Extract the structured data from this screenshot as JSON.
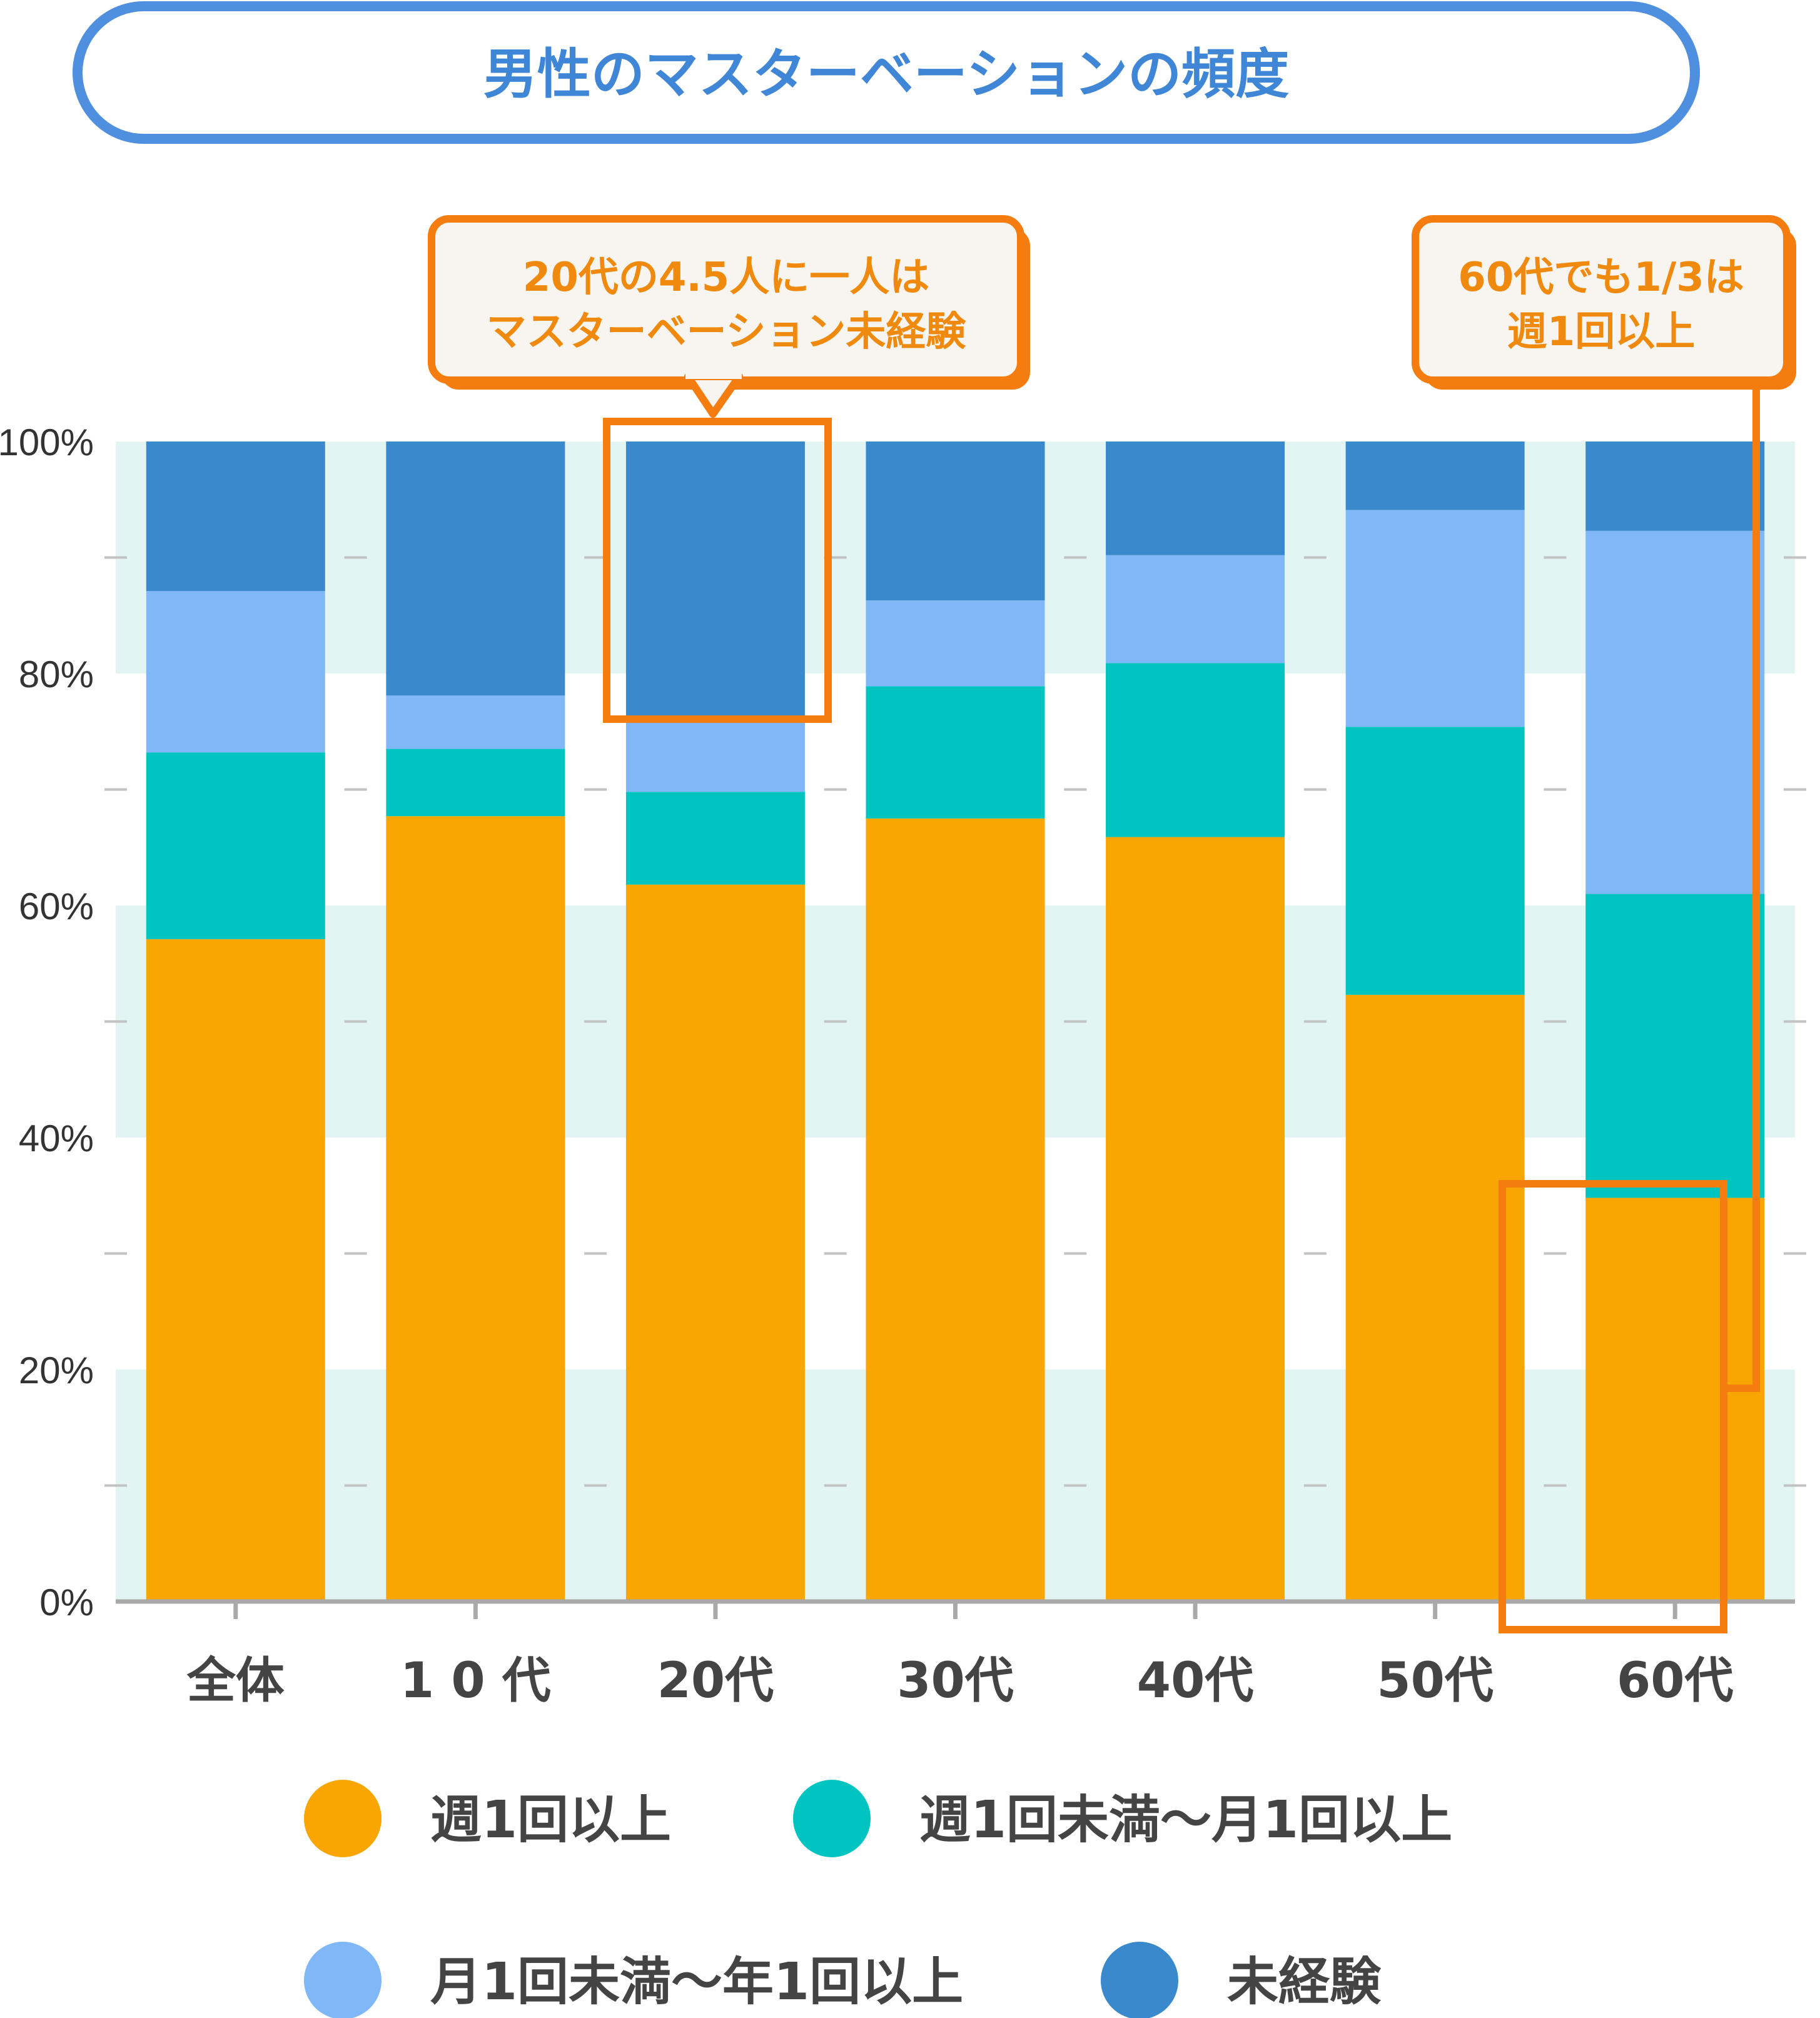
{
  "title": "男性のマスターベーションの頻度",
  "colors": {
    "title_border": "#4f8fe0",
    "title_text": "#3f86d6",
    "band": "#e2f5f3",
    "axis": "#a9a9a9",
    "tick_text": "#333333",
    "label_text": "#444444",
    "callout_border": "#f57c0e",
    "callout_fill": "#f8f5f1",
    "callout_text": "#f08a0e"
  },
  "callouts": [
    {
      "lines": [
        "20代の4.5人に一人は",
        "マスターベーション未経験"
      ]
    },
    {
      "lines": [
        "60代でも1/3は",
        "週1回以上"
      ]
    }
  ],
  "chart_data": {
    "type": "bar",
    "stacked": true,
    "categories": [
      "全体",
      "1 0 代",
      "20代",
      "30代",
      "40代",
      "50代",
      "60代"
    ],
    "ylim": [
      0,
      100
    ],
    "yticks": [
      "0%",
      "20%",
      "40%",
      "60%",
      "80%",
      "100%"
    ],
    "grid": "alternating horizontal bands",
    "legend_position": "bottom",
    "series": [
      {
        "name": "週1回以上",
        "color": "#f9a602",
        "values": [
          57.1,
          67.7,
          61.8,
          67.5,
          65.9,
          52.3,
          34.8
        ]
      },
      {
        "name": "週1回未満〜月1回以上",
        "color": "#00c4c0",
        "values": [
          16.1,
          5.8,
          8.0,
          11.4,
          15.0,
          23.1,
          26.2
        ]
      },
      {
        "name": "月1回未満〜年1回以上",
        "color": "#80b8f7",
        "values": [
          13.9,
          4.6,
          6.0,
          7.4,
          9.3,
          18.7,
          31.3
        ]
      },
      {
        "name": "未経験",
        "color": "#3a89cc",
        "values": [
          12.9,
          21.9,
          24.2,
          13.7,
          9.8,
          5.9,
          7.7
        ]
      }
    ]
  }
}
